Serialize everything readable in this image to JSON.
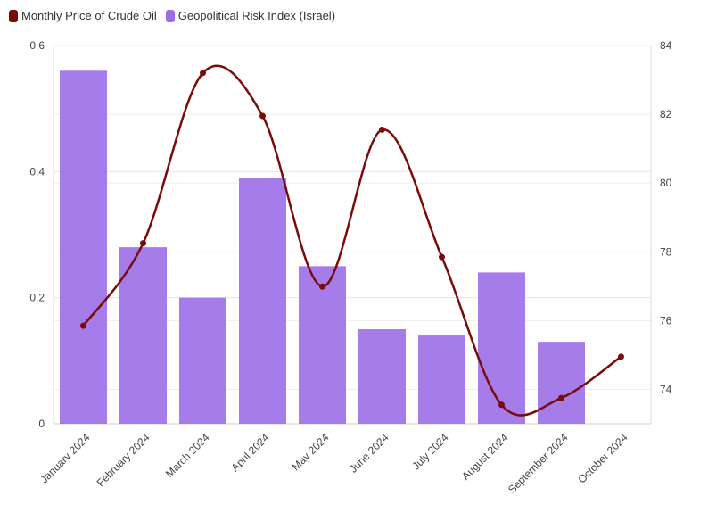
{
  "legend": [
    {
      "label": "Monthly Price of Crude Oil",
      "color": "#7a0b0b"
    },
    {
      "label": "Geopolitical Risk Index (Israel)",
      "color": "#9b6ee8"
    }
  ],
  "chart_data": {
    "type": "bar",
    "categories": [
      "January 2024",
      "February 2024",
      "March 2024",
      "April 2024",
      "May 2024",
      "June 2024",
      "July 2024",
      "August 2024",
      "September 2024",
      "October 2024"
    ],
    "series": [
      {
        "name": "Geopolitical Risk Index (Israel)",
        "type": "bar",
        "axis": "left",
        "color": "#9b6ee8",
        "values": [
          0.56,
          0.28,
          0.2,
          0.39,
          0.25,
          0.15,
          0.14,
          0.24,
          0.13,
          null
        ]
      },
      {
        "name": "Monthly Price of Crude Oil",
        "type": "line",
        "axis": "right",
        "color": "#7a0b0b",
        "values": [
          75.85,
          78.25,
          83.2,
          81.95,
          76.99,
          81.55,
          77.85,
          73.55,
          73.75,
          74.95
        ]
      }
    ],
    "y_left": {
      "ylim": [
        0,
        0.6
      ],
      "ticks": [
        "0",
        "0.2",
        "0.4",
        "0.6"
      ],
      "tick_values": [
        0,
        0.2,
        0.4,
        0.6
      ]
    },
    "y_right": {
      "ylim": [
        73,
        84
      ],
      "ticks": [
        "74",
        "76",
        "78",
        "80",
        "82",
        "84"
      ],
      "tick_values": [
        74,
        76,
        78,
        80,
        82,
        84
      ]
    },
    "grid": true,
    "legend_position": "top-left"
  }
}
